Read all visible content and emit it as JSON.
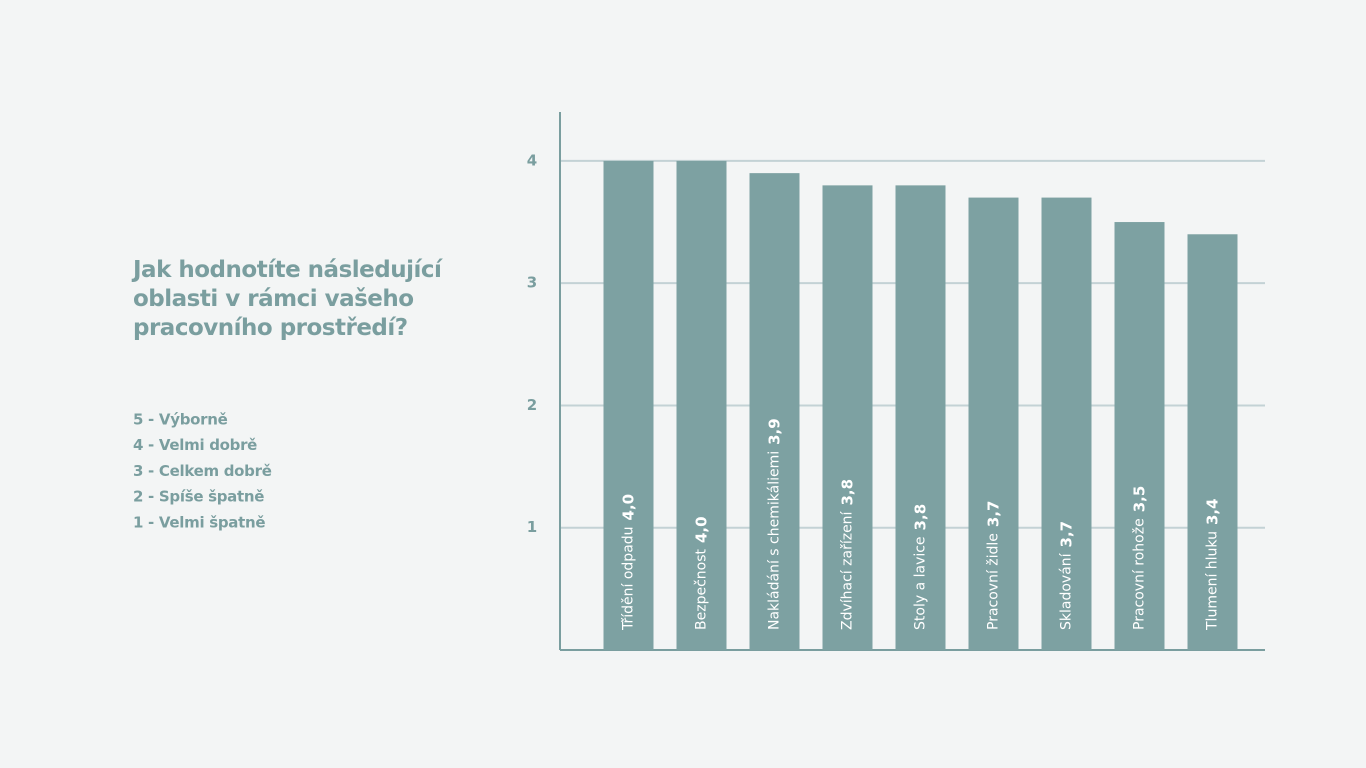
{
  "chart_data": {
    "type": "bar",
    "title": "Jak hodnotíte následující oblasti v rámci vašeho pracovního prostředí?",
    "annotations": [
      "5 - Výborně",
      "4 - Velmi dobrě",
      "3 - Celkem dobrě",
      "2 - Spíše špatně",
      "1 - Velmi špatně"
    ],
    "categories": [
      "Třídění odpadu",
      "Bezpečnost",
      "Nakládání s chemikáliemi",
      "Zdvíhací zařízení",
      "Stoly a lavice",
      "Pracovní židle",
      "Skladování",
      "Pracovní rohože",
      "Tlumení hluku"
    ],
    "values": [
      4.0,
      4.0,
      3.9,
      3.8,
      3.8,
      3.7,
      3.7,
      3.5,
      3.4
    ],
    "value_labels": [
      "4,0",
      "4,0",
      "3,9",
      "3,8",
      "3,8",
      "3,7",
      "3,7",
      "3,5",
      "3,4"
    ],
    "color": "#7da1a2",
    "ylim": [
      0,
      4.4
    ],
    "yticks": [
      1,
      2,
      3,
      4
    ],
    "grid": true
  }
}
